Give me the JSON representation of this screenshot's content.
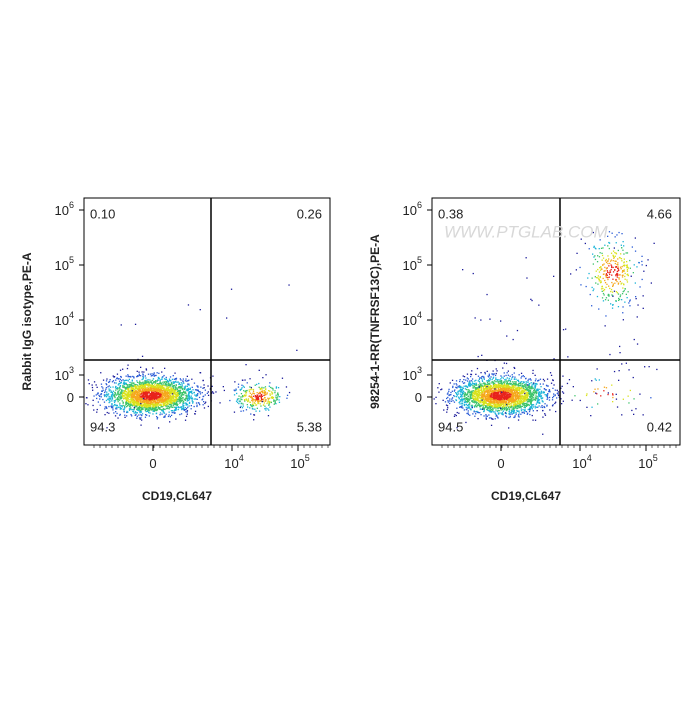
{
  "watermark": "WWW.PTGLAB.COM",
  "panels": [
    {
      "y_label": "Rabbit IgG isotype,PE-A",
      "x_label": "CD19,CL647",
      "y_ticks": [
        {
          "base": "10",
          "exp": "6"
        },
        {
          "base": "10",
          "exp": "5"
        },
        {
          "base": "10",
          "exp": "4"
        },
        {
          "base": "10",
          "exp": "3"
        },
        {
          "base": "0"
        }
      ],
      "x_ticks": [
        {
          "base": "0"
        },
        {
          "base": "10",
          "exp": "4"
        },
        {
          "base": "10",
          "exp": "5"
        }
      ],
      "quadrants": {
        "upper_left": "0.10",
        "upper_right": "0.26",
        "lower_left": "94.3",
        "lower_right": "5.38"
      }
    },
    {
      "y_label": "98254-1-RR(TNFRSF13C),PE-A",
      "x_label": "CD19,CL647",
      "y_ticks": [
        {
          "base": "10",
          "exp": "6"
        },
        {
          "base": "10",
          "exp": "5"
        },
        {
          "base": "10",
          "exp": "4"
        },
        {
          "base": "10",
          "exp": "3"
        },
        {
          "base": "0"
        }
      ],
      "x_ticks": [
        {
          "base": "0"
        },
        {
          "base": "10",
          "exp": "4"
        },
        {
          "base": "10",
          "exp": "5"
        }
      ],
      "quadrants": {
        "upper_left": "0.38",
        "upper_right": "4.66",
        "lower_left": "94.5",
        "lower_right": "0.42"
      }
    }
  ]
}
